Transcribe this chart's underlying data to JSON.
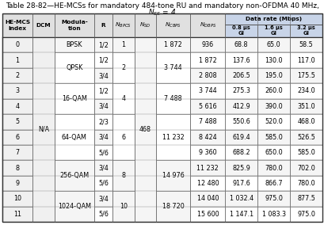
{
  "title_line1": "Table 28-82—HE-MCSs for mandatory 484-tone RU and mandatory non-OFDMA 40 MHz,",
  "title_line2": "N_SS = 4",
  "data_rate_header": "Data rate (Mbps)",
  "rows": [
    [
      0,
      "",
      "BPSK",
      "1/2",
      "1",
      "",
      "1 872",
      "936",
      "68.8",
      "65.0",
      "58.5"
    ],
    [
      1,
      "",
      "QPSK",
      "1/2",
      "2",
      "",
      "3 744",
      "1 872",
      "137.6",
      "130.0",
      "117.0"
    ],
    [
      2,
      "",
      "QPSK",
      "3/4",
      "2",
      "",
      "3 744",
      "2 808",
      "206.5",
      "195.0",
      "175.5"
    ],
    [
      3,
      "",
      "16-QAM",
      "1/2",
      "4",
      "",
      "7 488",
      "3 744",
      "275.3",
      "260.0",
      "234.0"
    ],
    [
      4,
      "",
      "16-QAM",
      "3/4",
      "4",
      "",
      "7 488",
      "5 616",
      "412.9",
      "390.0",
      "351.0"
    ],
    [
      5,
      "N/A",
      "64-QAM",
      "2/3",
      "6",
      "468",
      "11 232",
      "7 488",
      "550.6",
      "520.0",
      "468.0"
    ],
    [
      6,
      "",
      "64-QAM",
      "3/4",
      "6",
      "",
      "11 232",
      "8 424",
      "619.4",
      "585.0",
      "526.5"
    ],
    [
      7,
      "",
      "64-QAM",
      "5/6",
      "6",
      "",
      "11 232",
      "9 360",
      "688.2",
      "650.0",
      "585.0"
    ],
    [
      8,
      "",
      "256-QAM",
      "3/4",
      "8",
      "",
      "14 976",
      "11 232",
      "825.9",
      "780.0",
      "702.0"
    ],
    [
      9,
      "",
      "256-QAM",
      "5/6",
      "8",
      "",
      "14 976",
      "12 480",
      "917.6",
      "866.7",
      "780.0"
    ],
    [
      10,
      "",
      "1024-QAM",
      "3/4",
      "10",
      "",
      "18 720",
      "14 040",
      "1 032.4",
      "975.0",
      "877.5"
    ],
    [
      11,
      "",
      "1024-QAM",
      "5/6",
      "10",
      "",
      "18 720",
      "15 600",
      "1 147.1",
      "1 083.3",
      "975.0"
    ]
  ],
  "mod_merges": [
    [
      0,
      0,
      "BPSK"
    ],
    [
      1,
      2,
      "QPSK"
    ],
    [
      3,
      4,
      "16-QAM"
    ],
    [
      5,
      7,
      "64-QAM"
    ],
    [
      8,
      9,
      "256-QAM"
    ],
    [
      10,
      11,
      "1024-QAM"
    ]
  ],
  "nbpcs_merges": [
    [
      0,
      0,
      "1"
    ],
    [
      1,
      2,
      "2"
    ],
    [
      3,
      4,
      "4"
    ],
    [
      5,
      7,
      "6"
    ],
    [
      8,
      9,
      "8"
    ],
    [
      10,
      11,
      "10"
    ]
  ],
  "ncbps_merges": [
    [
      0,
      0,
      "1 872"
    ],
    [
      1,
      2,
      "3 744"
    ],
    [
      3,
      4,
      "7 488"
    ],
    [
      5,
      7,
      "11 232"
    ],
    [
      8,
      9,
      "14 976"
    ],
    [
      10,
      11,
      "18 720"
    ]
  ],
  "dcm_merges": [
    [
      0,
      11,
      "N/A"
    ]
  ],
  "nsd_merges": [
    [
      0,
      11,
      "468"
    ]
  ],
  "col_rel_widths": [
    28,
    20,
    37,
    17,
    20,
    20,
    32,
    32,
    30,
    30,
    30
  ],
  "header_bg": "#e0e0e0",
  "data_rate_bg": "#c8d4e8",
  "border_color": "#777777",
  "text_color": "#000000",
  "font_size": 5.8,
  "title_font_size": 6.5
}
